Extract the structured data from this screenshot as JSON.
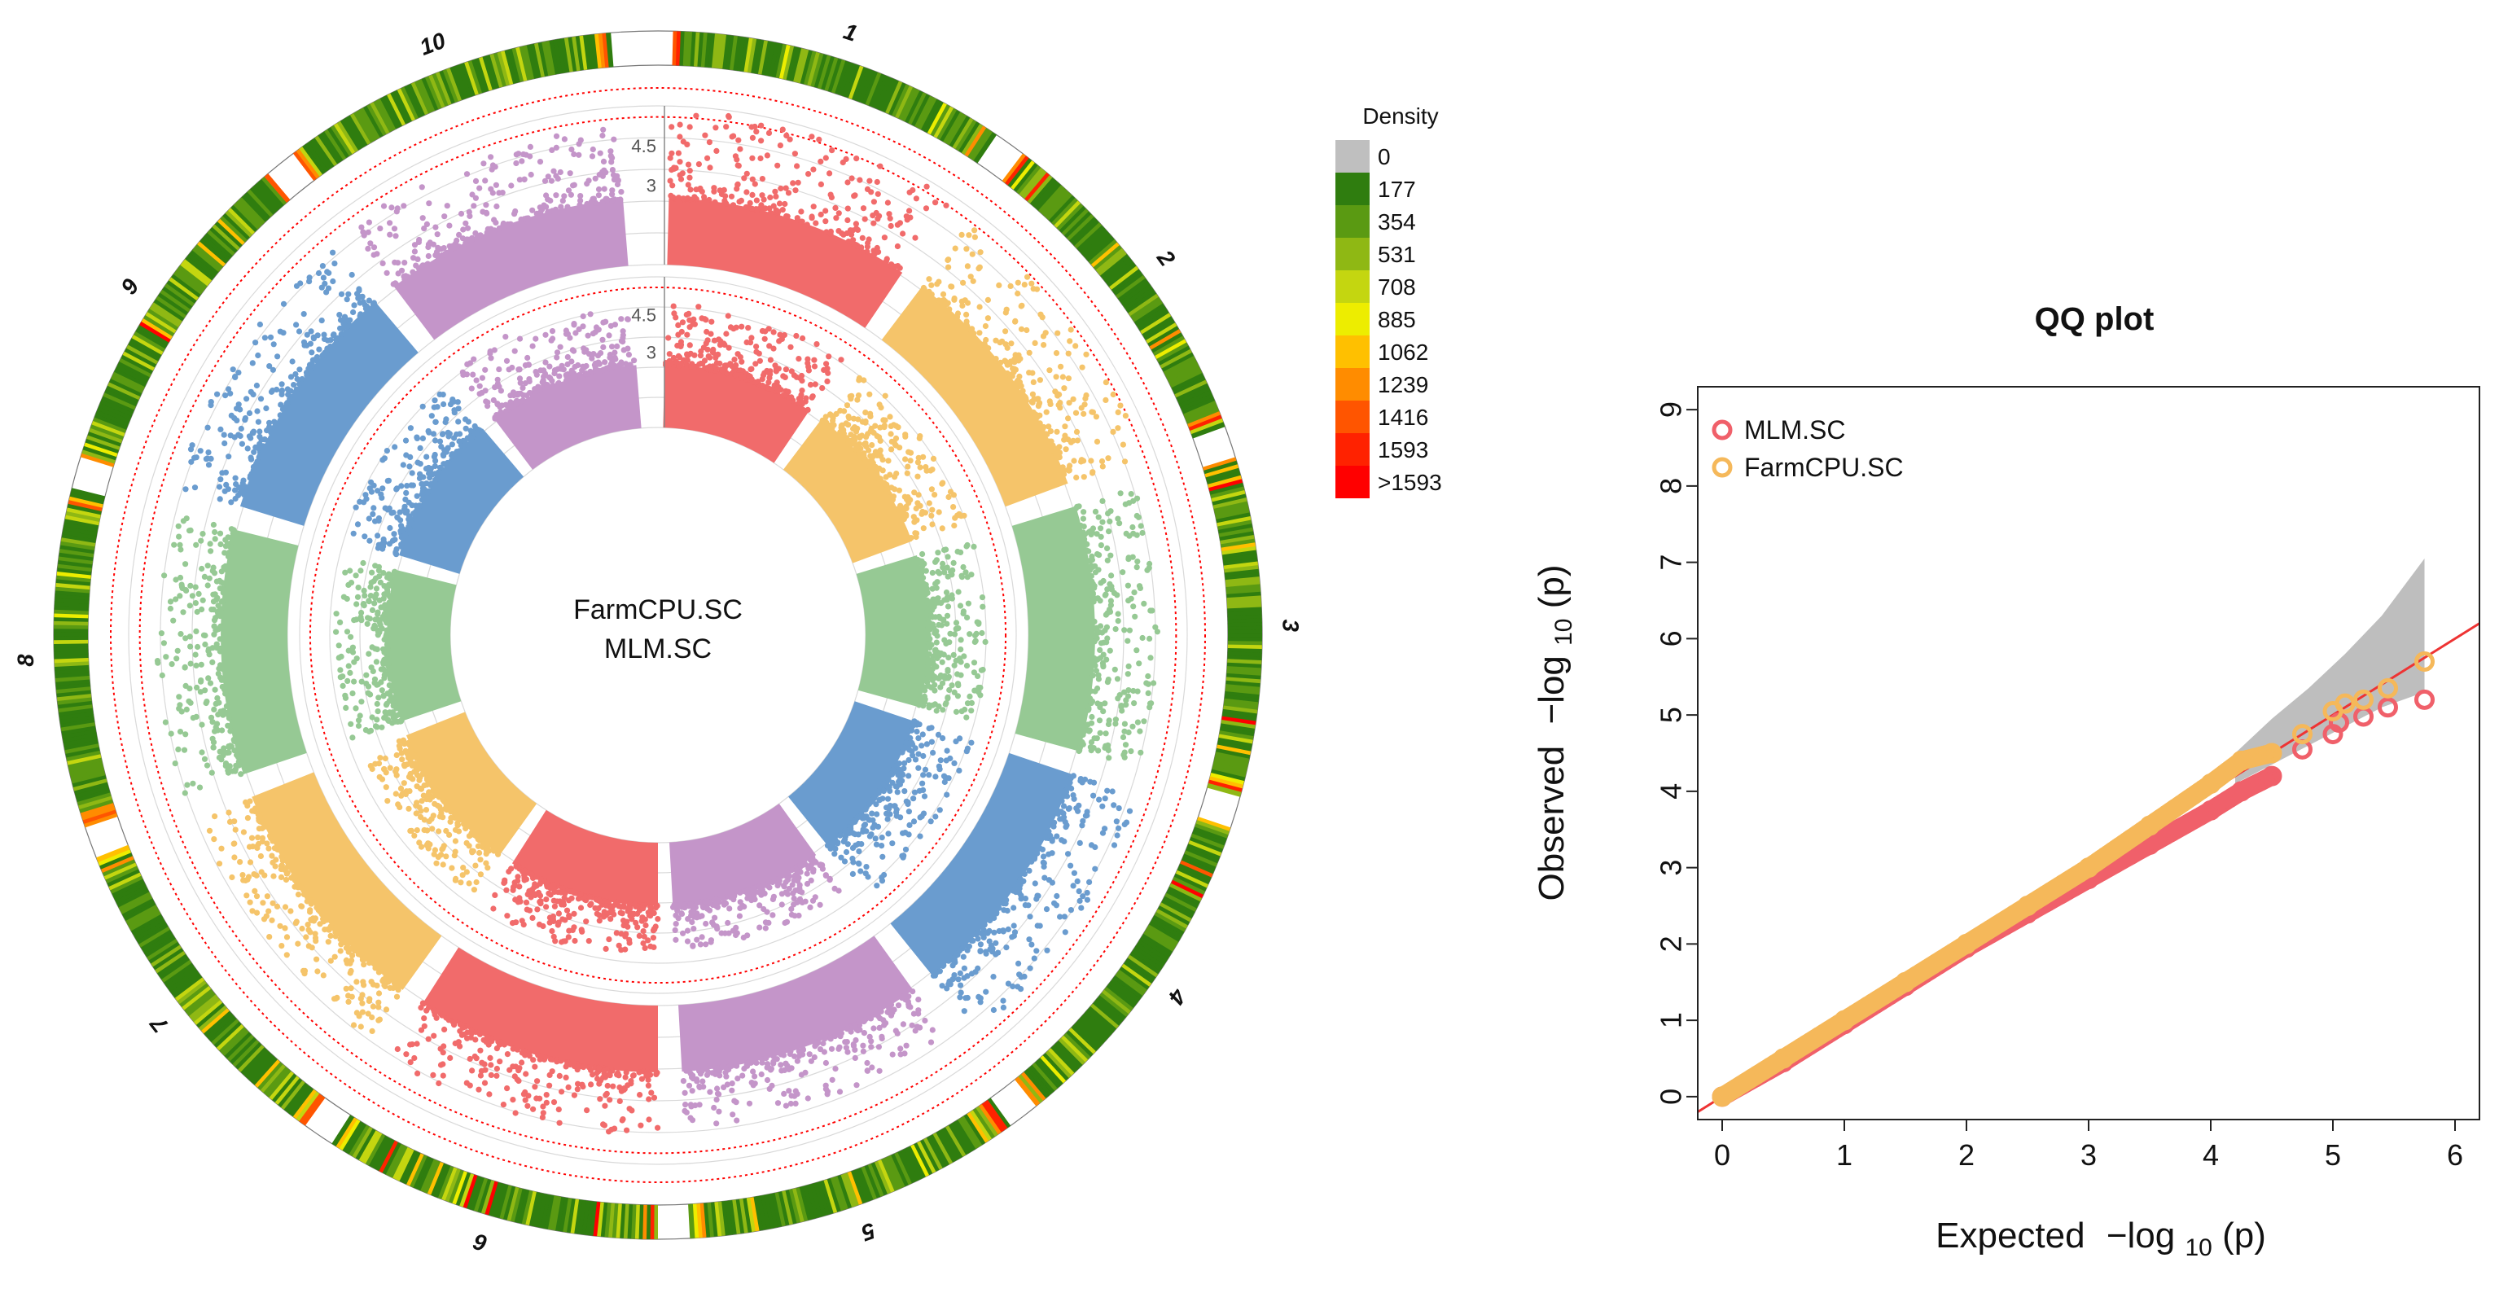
{
  "chart_data": [
    {
      "type": "circular-manhattan",
      "center_label_outer": "FarmCPU.SC",
      "center_label_inner": "MLM.SC",
      "chromosomes": [
        "1",
        "2",
        "3",
        "4",
        "5",
        "6",
        "7",
        "8",
        "9",
        "10"
      ],
      "chromosome_colors": [
        "#f16b6b",
        "#f5c46a",
        "#96c994",
        "#6a9ccf",
        "#c495c9",
        "#f16b6b",
        "#f5c46a",
        "#96c994",
        "#6a9ccf",
        "#c495c9"
      ],
      "ring_tick_labels": [
        "4.5",
        "3"
      ],
      "tracks": [
        {
          "name": "FarmCPU.SC",
          "position": "outer",
          "max_log10p_per_chr": [
            5.8,
            5.6,
            4.9,
            5.2,
            4.6,
            4.9,
            4.7,
            5.0,
            5.1,
            5.3
          ]
        },
        {
          "name": "MLM.SC",
          "position": "inner",
          "max_log10p_per_chr": [
            5.0,
            4.9,
            4.8,
            5.0,
            4.3,
            4.6,
            4.4,
            4.6,
            4.8,
            5.1
          ]
        }
      ],
      "threshold_line_color": "#ff0000",
      "density_legend": {
        "title": "Density",
        "labels": [
          "0",
          "177",
          "354",
          "531",
          "708",
          "885",
          "1062",
          "1239",
          "1416",
          "1593",
          ">1593"
        ],
        "colors": [
          "#bfbfbf",
          "#2f7d0f",
          "#5a9a12",
          "#8fb814",
          "#c4d610",
          "#eded00",
          "#ffc000",
          "#ff8c00",
          "#ff5500",
          "#ff2200",
          "#ff0000"
        ]
      }
    },
    {
      "type": "scatter",
      "title": "QQ plot",
      "xlabel_main": "Expected",
      "ylabel_main": "Observed",
      "axis_expr": "−log",
      "axis_sub": "10",
      "axis_arg": "(p)",
      "xlim": [
        -0.2,
        6.2
      ],
      "ylim": [
        -0.3,
        9.3
      ],
      "xticks": [
        0,
        1,
        2,
        3,
        4,
        5,
        6
      ],
      "yticks": [
        0,
        1,
        2,
        3,
        4,
        5,
        6,
        7,
        8,
        9
      ],
      "xtick_labels": [
        "0",
        "1",
        "2",
        "3",
        "4",
        "5",
        "6"
      ],
      "ytick_labels": [
        "0",
        "1",
        "2",
        "3",
        "4",
        "5",
        "6",
        "7",
        "8",
        "9"
      ],
      "reference_line": {
        "slope": 1,
        "intercept": 0,
        "color": "#ee3333"
      },
      "confidence_band": {
        "color": "#bebebe",
        "x": [
          4.2,
          4.5,
          4.8,
          5.1,
          5.4,
          5.75
        ],
        "upper": [
          4.5,
          4.95,
          5.35,
          5.8,
          6.3,
          7.05
        ],
        "lower": [
          4.1,
          4.35,
          4.6,
          4.85,
          5.1,
          5.3
        ]
      },
      "series": [
        {
          "name": "MLM.SC",
          "color": "#f0606a",
          "x": [
            0,
            0.5,
            1,
            1.5,
            2,
            2.5,
            3,
            3.5,
            4,
            4.25,
            4.5,
            4.75,
            5.0,
            5.05,
            5.25,
            5.45,
            5.75
          ],
          "y": [
            0,
            0.45,
            0.95,
            1.45,
            1.95,
            2.4,
            2.85,
            3.3,
            3.75,
            4.0,
            4.2,
            4.55,
            4.75,
            4.9,
            4.98,
            5.1,
            5.2
          ]
        },
        {
          "name": "FarmCPU.SC",
          "color": "#f5b85a",
          "x": [
            0,
            0.5,
            1,
            1.5,
            2,
            2.5,
            3,
            3.5,
            4,
            4.25,
            4.5,
            4.75,
            5.0,
            5.1,
            5.25,
            5.45,
            5.75
          ],
          "y": [
            0,
            0.5,
            1.0,
            1.5,
            2.0,
            2.5,
            3.0,
            3.55,
            4.1,
            4.4,
            4.5,
            4.75,
            5.05,
            5.15,
            5.2,
            5.35,
            5.7
          ]
        }
      ]
    }
  ]
}
